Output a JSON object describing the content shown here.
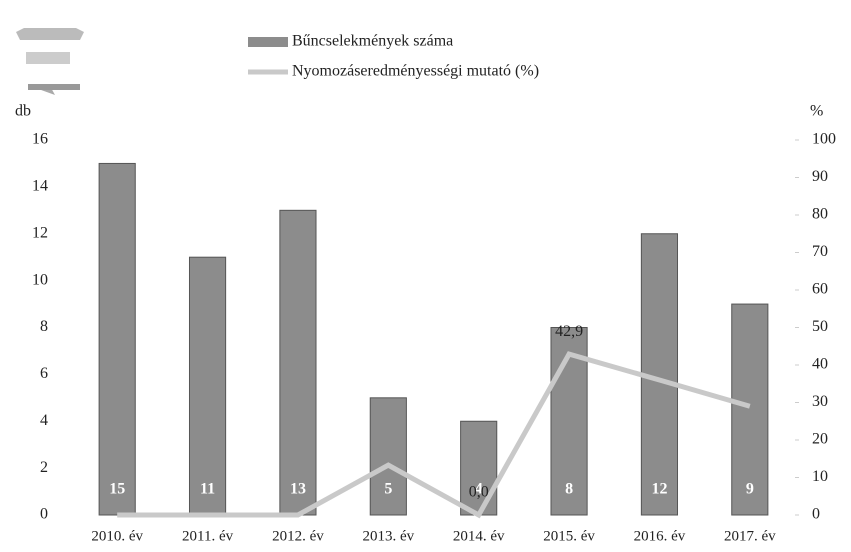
{
  "chart_data": {
    "type": "bar_line",
    "y_label": "db",
    "y2_label": "%",
    "categories": [
      "2010. év",
      "2011. év",
      "2012. év",
      "2013. év",
      "2014. év",
      "2015. év",
      "2016. év",
      "2017. év"
    ],
    "series": [
      {
        "name": "Bűncselekmények száma",
        "type": "bar",
        "color": "#8c8c8c",
        "values": [
          15,
          11,
          13,
          5,
          4,
          8,
          12,
          9
        ]
      },
      {
        "name": "Nyomozáseredményességi mutató (%)",
        "type": "line",
        "axis": "y2",
        "color": "#c9c9c9",
        "values": [
          0,
          0,
          0,
          13.3,
          0,
          42.9,
          36,
          29
        ],
        "value_labels": [
          null,
          null,
          null,
          null,
          "0,0",
          "42,9",
          null,
          null
        ]
      }
    ],
    "ylim": [
      0,
      16
    ],
    "yticks": [
      0,
      2,
      4,
      6,
      8,
      10,
      12,
      14,
      16
    ],
    "y2lim": [
      0,
      100
    ],
    "y2ticks": [
      0,
      10,
      20,
      30,
      40,
      50,
      60,
      70,
      80,
      90,
      100
    ],
    "legend": "top"
  }
}
